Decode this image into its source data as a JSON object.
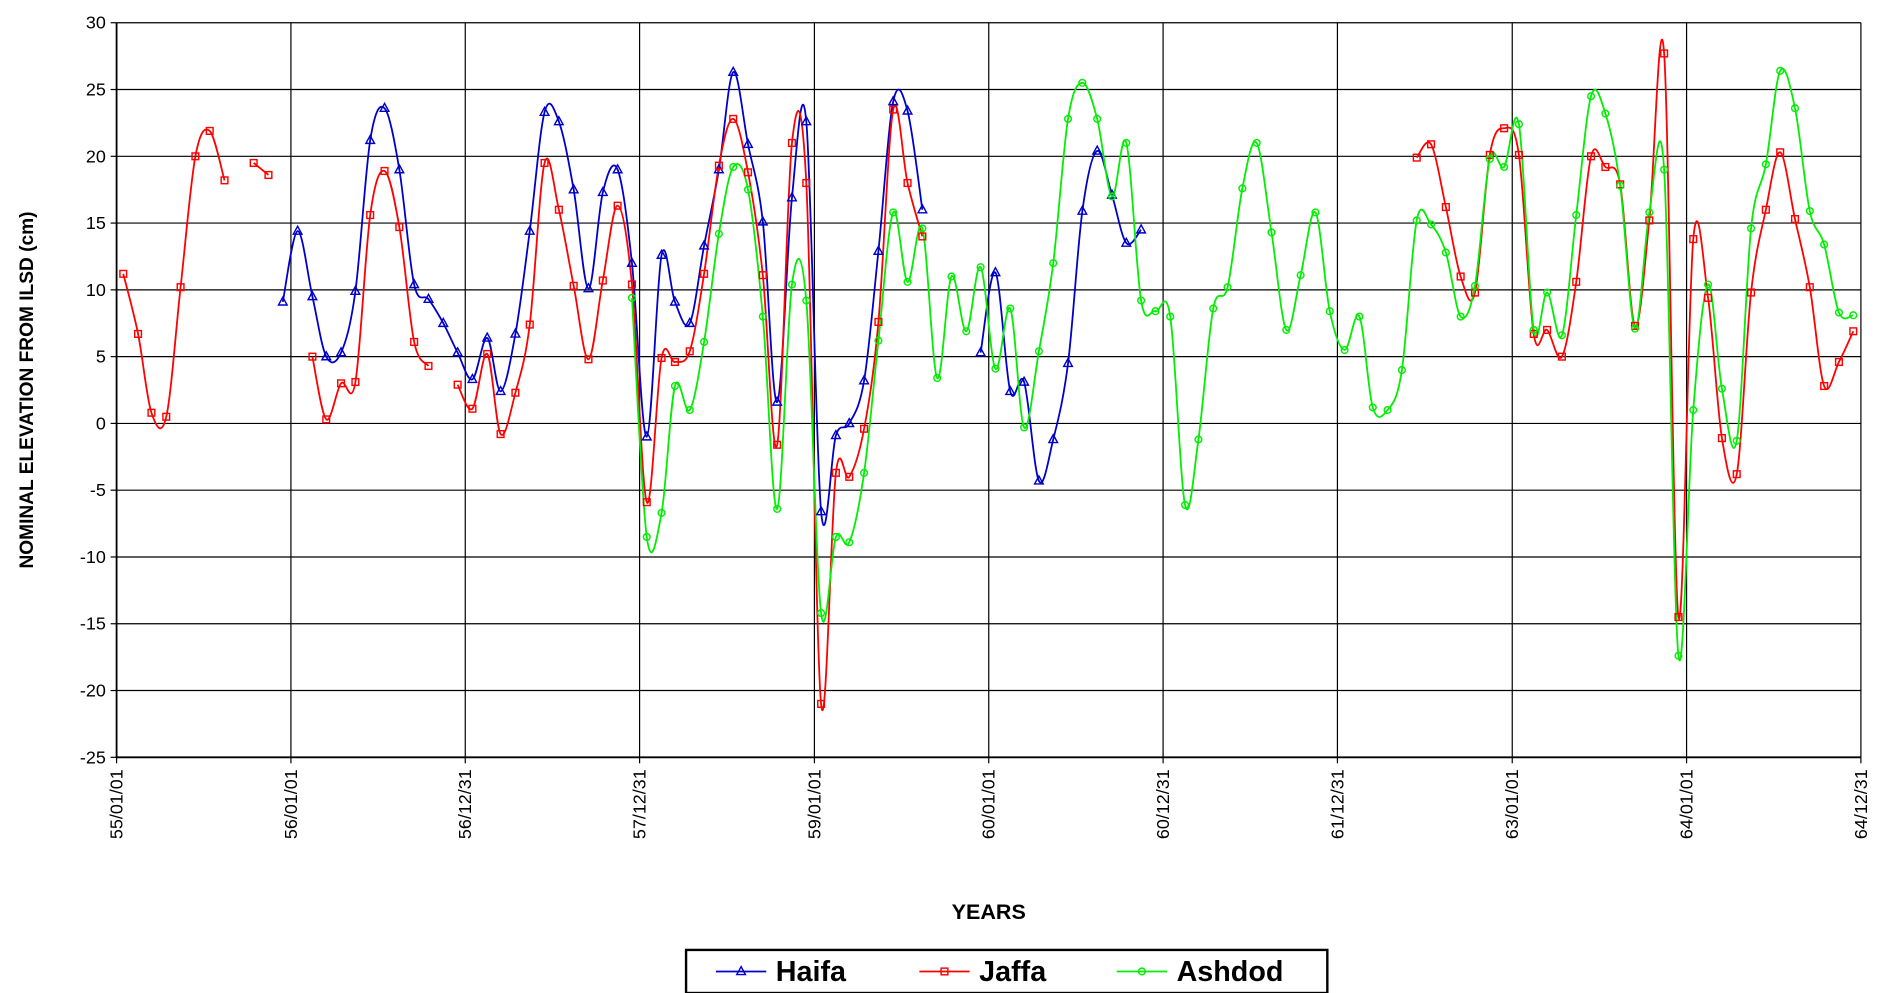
{
  "chart_data": {
    "type": "line",
    "ylabel": "NOMINAL ELEVATION FROM ILSD (cm)",
    "xlabel": "YEARS",
    "x": [
      "55/01/15",
      "55/02/15",
      "55/03/15",
      "55/04/15",
      "55/05/15",
      "55/06/15",
      "55/07/15",
      "55/08/15",
      "55/09/15",
      "55/10/15",
      "55/11/15",
      "55/12/15",
      "56/01/15",
      "56/02/15",
      "56/03/15",
      "56/04/15",
      "56/05/15",
      "56/06/15",
      "56/07/15",
      "56/08/15",
      "56/09/15",
      "56/10/15",
      "56/11/15",
      "56/12/15",
      "57/01/15",
      "57/02/15",
      "57/03/15",
      "57/04/15",
      "57/05/15",
      "57/06/15",
      "57/07/15",
      "57/08/15",
      "57/09/15",
      "57/10/15",
      "57/11/15",
      "57/12/15",
      "58/01/15",
      "58/02/15",
      "58/03/15",
      "58/04/15",
      "58/05/15",
      "58/06/15",
      "58/07/15",
      "58/08/15",
      "58/09/15",
      "58/10/15",
      "58/11/15",
      "58/12/15",
      "59/01/15",
      "59/02/15",
      "59/03/15",
      "59/04/15",
      "59/05/15",
      "59/06/15",
      "59/07/15",
      "59/08/15",
      "59/09/15",
      "59/10/15",
      "59/11/15",
      "59/12/15",
      "60/01/15",
      "60/02/15",
      "60/03/15",
      "60/04/15",
      "60/05/15",
      "60/06/15",
      "60/07/15",
      "60/08/15",
      "60/09/15",
      "60/10/15",
      "60/11/15",
      "60/12/15",
      "61/01/15",
      "61/02/15",
      "61/03/15",
      "61/04/15",
      "61/05/15",
      "61/06/15",
      "61/07/15",
      "61/08/15",
      "61/09/15",
      "61/10/15",
      "61/11/15",
      "61/12/15",
      "62/01/15",
      "62/02/15",
      "62/03/15",
      "62/04/15",
      "62/05/15",
      "62/06/15",
      "62/07/15",
      "62/08/15",
      "62/09/15",
      "62/10/15",
      "62/11/15",
      "62/12/15",
      "63/01/15",
      "63/02/15",
      "63/03/15",
      "63/04/15",
      "63/05/15",
      "63/06/15",
      "63/07/15",
      "63/08/15",
      "63/09/15",
      "63/10/15",
      "63/11/15",
      "63/12/15",
      "64/01/15",
      "64/02/15",
      "64/03/15",
      "64/04/15",
      "64/05/15",
      "64/06/15",
      "64/07/15",
      "64/08/15",
      "64/09/15",
      "64/10/15",
      "64/11/15",
      "64/12/15"
    ],
    "series": [
      {
        "name": "Haifa",
        "color": "#0000cc",
        "marker": "triangle",
        "values": [
          null,
          null,
          null,
          null,
          null,
          null,
          null,
          null,
          null,
          null,
          null,
          9.1,
          14.4,
          9.5,
          5.0,
          5.3,
          9.9,
          21.2,
          23.6,
          19.0,
          10.4,
          9.3,
          7.5,
          5.3,
          3.3,
          6.4,
          2.4,
          6.7,
          14.4,
          23.3,
          22.6,
          17.5,
          10.1,
          17.3,
          19.0,
          12.0,
          -1.0,
          12.6,
          9.1,
          7.5,
          13.3,
          19.0,
          26.3,
          20.9,
          15.1,
          1.6,
          16.9,
          22.6,
          -6.6,
          -0.9,
          0.0,
          3.2,
          12.9,
          24.1,
          23.4,
          16.0,
          null,
          null,
          null,
          5.3,
          11.3,
          2.4,
          3.1,
          -4.3,
          -1.2,
          4.5,
          15.9,
          20.4,
          17.1,
          13.5,
          14.5,
          null,
          null,
          null,
          null,
          null,
          null,
          null,
          null,
          null,
          null,
          null,
          null,
          null,
          null,
          null,
          null,
          null,
          null,
          null,
          null,
          null,
          null,
          null,
          null,
          null,
          null,
          null,
          null,
          null,
          null,
          null,
          null,
          null,
          null,
          null,
          null,
          null,
          null,
          null,
          null,
          null,
          null,
          null,
          null,
          null,
          null,
          null,
          null,
          null
        ]
      },
      {
        "name": "Jaffa",
        "color": "#ff0000",
        "marker": "square",
        "values": [
          11.2,
          6.7,
          0.8,
          0.5,
          10.2,
          20.0,
          21.9,
          18.2,
          null,
          19.5,
          18.6,
          null,
          null,
          5.0,
          0.3,
          3.0,
          3.1,
          15.6,
          18.9,
          14.7,
          6.1,
          4.3,
          null,
          2.9,
          1.1,
          5.2,
          -0.8,
          2.3,
          7.4,
          19.5,
          16.0,
          10.3,
          4.8,
          10.7,
          16.3,
          10.4,
          -5.9,
          4.9,
          4.6,
          5.4,
          11.2,
          19.3,
          22.8,
          18.8,
          11.1,
          -1.6,
          21.0,
          18.0,
          -21.0,
          -3.7,
          -4.0,
          -0.4,
          7.6,
          23.5,
          18.0,
          14.0,
          null,
          null,
          null,
          null,
          null,
          null,
          null,
          null,
          null,
          null,
          null,
          null,
          null,
          null,
          null,
          null,
          null,
          null,
          null,
          null,
          null,
          null,
          null,
          null,
          null,
          null,
          null,
          null,
          null,
          null,
          null,
          null,
          null,
          19.9,
          20.9,
          16.2,
          11.0,
          9.8,
          20.1,
          22.1,
          20.1,
          6.7,
          7.0,
          5.0,
          10.6,
          20.0,
          19.2,
          17.9,
          7.3,
          15.2,
          27.7,
          -14.5,
          13.8,
          9.4,
          -1.1,
          -3.8,
          9.8,
          16.0,
          20.3,
          15.3,
          10.2,
          2.8,
          4.6,
          6.9
        ]
      },
      {
        "name": "Ashdod",
        "color": "#00ee00",
        "marker": "circle",
        "values": [
          null,
          null,
          null,
          null,
          null,
          null,
          null,
          null,
          null,
          null,
          null,
          null,
          null,
          null,
          null,
          null,
          null,
          null,
          null,
          null,
          null,
          null,
          null,
          null,
          null,
          null,
          null,
          null,
          null,
          null,
          null,
          null,
          null,
          null,
          null,
          9.4,
          -8.5,
          -6.7,
          2.8,
          1.0,
          6.1,
          14.2,
          19.2,
          17.5,
          8.0,
          -6.4,
          10.4,
          9.2,
          -14.2,
          -8.5,
          -8.9,
          -3.7,
          6.2,
          15.8,
          10.6,
          14.6,
          3.4,
          11.0,
          6.9,
          11.7,
          4.1,
          8.6,
          -0.3,
          5.4,
          12.0,
          22.8,
          25.5,
          22.8,
          17.0,
          21.0,
          9.2,
          8.4,
          8.0,
          -6.1,
          -1.2,
          8.6,
          10.2,
          17.6,
          21.0,
          14.3,
          7.0,
          11.1,
          15.8,
          8.4,
          5.5,
          8.0,
          1.2,
          1.0,
          4.0,
          15.2,
          14.9,
          12.8,
          8.0,
          10.3,
          19.8,
          19.2,
          22.4,
          7.0,
          9.8,
          6.6,
          15.6,
          24.5,
          23.2,
          17.8,
          7.1,
          15.8,
          19.0,
          -17.4,
          1.0,
          10.4,
          2.6,
          -1.3,
          14.6,
          19.4,
          26.4,
          23.6,
          15.9,
          13.4,
          8.3,
          8.1
        ]
      }
    ],
    "xlim": [
      "55/01/01",
      "64/12/31"
    ],
    "xticks": [
      "55/01/01",
      "56/01/01",
      "56/12/31",
      "57/12/31",
      "59/01/01",
      "60/01/01",
      "60/12/31",
      "61/12/31",
      "63/01/01",
      "64/01/01",
      "64/12/31"
    ],
    "ylim": [
      -25,
      30
    ],
    "yticks": [
      -25,
      -20,
      -15,
      -10,
      -5,
      0,
      5,
      10,
      15,
      20,
      25,
      30
    ],
    "grid": true,
    "legend": "bottom"
  }
}
